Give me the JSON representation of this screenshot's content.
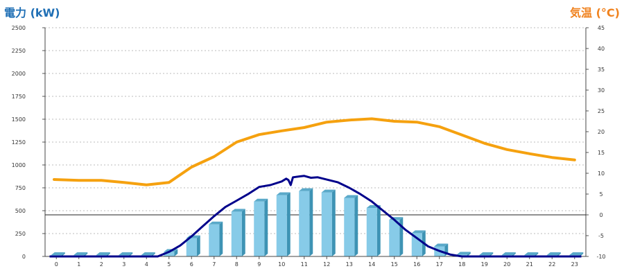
{
  "chart_data": {
    "type": "bar",
    "title": "",
    "ylabel_left": "電力 (kW)",
    "ylabel_right": "気温 (°C)",
    "categories": [
      "0",
      "1",
      "2",
      "3",
      "4",
      "5",
      "6",
      "7",
      "8",
      "9",
      "10",
      "11",
      "12",
      "13",
      "14",
      "15",
      "16",
      "17",
      "18",
      "19",
      "20",
      "21",
      "22",
      "23"
    ],
    "ylim_left": [
      0,
      2500
    ],
    "yticks_left": [
      0,
      250,
      500,
      750,
      1000,
      1250,
      1500,
      1750,
      2000,
      2250,
      2500
    ],
    "ylim_right": [
      -10,
      45
    ],
    "yticks_right": [
      -10,
      -5,
      0,
      5,
      10,
      15,
      20,
      25,
      30,
      35,
      40,
      45
    ],
    "grid": "horizontal-dashed",
    "series": [
      {
        "type": "bar",
        "axis": "left",
        "color": "#87cbe8",
        "values": [
          15,
          15,
          15,
          15,
          15,
          50,
          200,
          350,
          490,
          600,
          670,
          715,
          700,
          640,
          530,
          400,
          255,
          110,
          20,
          15,
          15,
          15,
          15,
          15
        ]
      },
      {
        "type": "line",
        "axis": "left",
        "color": "#00008b",
        "points": [
          [
            -0.3,
            0
          ],
          [
            4.5,
            0
          ],
          [
            5,
            50
          ],
          [
            5.5,
            120
          ],
          [
            6,
            220
          ],
          [
            6.5,
            330
          ],
          [
            7,
            440
          ],
          [
            7.5,
            540
          ],
          [
            8,
            610
          ],
          [
            8.5,
            680
          ],
          [
            9,
            760
          ],
          [
            9.5,
            780
          ],
          [
            10,
            820
          ],
          [
            10.2,
            850
          ],
          [
            10.3,
            835
          ],
          [
            10.4,
            780
          ],
          [
            10.5,
            865
          ],
          [
            10.8,
            875
          ],
          [
            11,
            880
          ],
          [
            11.3,
            860
          ],
          [
            11.6,
            865
          ],
          [
            12,
            840
          ],
          [
            12.5,
            810
          ],
          [
            13,
            750
          ],
          [
            13.5,
            680
          ],
          [
            14,
            600
          ],
          [
            14.5,
            500
          ],
          [
            15,
            400
          ],
          [
            15.5,
            290
          ],
          [
            16,
            200
          ],
          [
            16.5,
            110
          ],
          [
            17,
            60
          ],
          [
            17.5,
            20
          ],
          [
            18,
            0
          ],
          [
            23.3,
            0
          ]
        ]
      },
      {
        "type": "line",
        "axis": "right",
        "color": "#f5a10f",
        "x": [
          -0.1,
          1,
          2,
          3,
          4,
          5,
          6,
          7,
          8,
          9,
          10,
          11,
          12,
          13,
          14,
          15,
          16,
          17,
          18,
          19,
          20,
          21,
          22,
          23
        ],
        "values": [
          8.5,
          8.3,
          8.3,
          7.8,
          7.2,
          7.8,
          11.5,
          14.0,
          17.5,
          19.3,
          20.2,
          21.0,
          22.3,
          22.8,
          23.1,
          22.5,
          22.3,
          21.2,
          19.2,
          17.2,
          15.7,
          14.7,
          13.8,
          13.2
        ]
      }
    ]
  }
}
